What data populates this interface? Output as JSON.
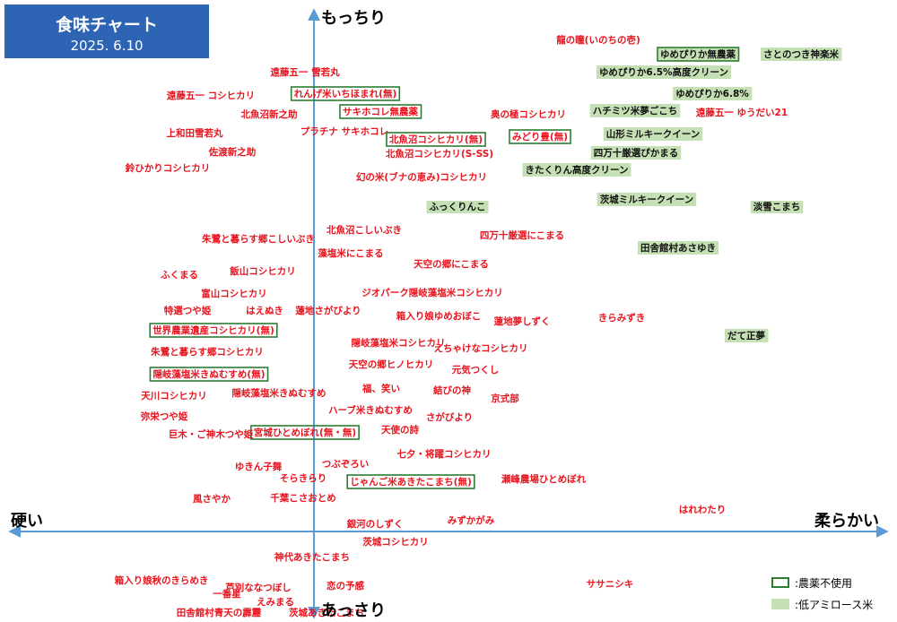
{
  "title": "食味チャート",
  "date": "2025. 6.10",
  "axes": {
    "top": "もっちり",
    "bottom": "あっさり",
    "left": "硬い",
    "right": "柔らかい"
  },
  "legend": {
    "organic": {
      "label": ":農薬不使用",
      "color": "#2e7d32"
    },
    "low_amylose": {
      "label": ":低アミロース米",
      "color": "#c5e0b4"
    }
  },
  "colors": {
    "red_text": "#e8141e",
    "black_text": "#111111",
    "axis": "#5b9bd5",
    "title_bg": "#2e64b4"
  },
  "chart_data": {
    "type": "scatter",
    "title": "食味チャート",
    "xlabel_left": "硬い",
    "xlabel_right": "柔らかい",
    "ylabel_top": "もっちり",
    "ylabel_bottom": "あっさり",
    "xlim": [
      -350,
      650
    ],
    "ylim": [
      -110,
      590
    ],
    "grid": false,
    "points": [
      {
        "label": "龍の瞳(いのちの壱)",
        "x": 317,
        "y": 548,
        "style": "red"
      },
      {
        "label": "ゆめぴりか無農薬",
        "x": 428,
        "y": 532,
        "style": "organic_green"
      },
      {
        "label": "さとのつき神楽米",
        "x": 543,
        "y": 532,
        "style": "green"
      },
      {
        "label": "遠藤五一 雪若丸",
        "x": -10,
        "y": 512,
        "style": "red"
      },
      {
        "label": "ゆめぴりか6.5%高度クリーン",
        "x": 390,
        "y": 512,
        "style": "green"
      },
      {
        "label": "ゆめぴりか6.8%",
        "x": 444,
        "y": 488,
        "style": "green"
      },
      {
        "label": "遠藤五一 コシヒカリ",
        "x": -115,
        "y": 486,
        "style": "red"
      },
      {
        "label": "れんげ米いちほまれ(無)",
        "x": 35,
        "y": 488,
        "style": "organic"
      },
      {
        "label": "サキホコレ無農薬",
        "x": 74,
        "y": 468,
        "style": "organic"
      },
      {
        "label": "北魚沼新之助",
        "x": -50,
        "y": 465,
        "style": "red"
      },
      {
        "label": "奥の極コシヒカリ",
        "x": 239,
        "y": 465,
        "style": "red"
      },
      {
        "label": "ハチミツ米夢ごこち",
        "x": 358,
        "y": 469,
        "style": "green"
      },
      {
        "label": "遠藤五一 ゆうだい21",
        "x": 477,
        "y": 467,
        "style": "red"
      },
      {
        "label": "上和田雪若丸",
        "x": -133,
        "y": 444,
        "style": "red"
      },
      {
        "label": "プラチナ サキホコレ",
        "x": 34,
        "y": 446,
        "style": "red"
      },
      {
        "label": "北魚沼コシヒカリ(無)",
        "x": 136,
        "y": 437,
        "style": "organic"
      },
      {
        "label": "みどり豊(無)",
        "x": 252,
        "y": 440,
        "style": "organic"
      },
      {
        "label": "山形ミルキークイーン",
        "x": 378,
        "y": 443,
        "style": "green"
      },
      {
        "label": "佐渡新之助",
        "x": -91,
        "y": 423,
        "style": "red"
      },
      {
        "label": "北魚沼コシヒカリ(S-SS)",
        "x": 140,
        "y": 421,
        "style": "red"
      },
      {
        "label": "四万十厳選ぴかまる",
        "x": 359,
        "y": 422,
        "style": "green"
      },
      {
        "label": "鈴ひかりコシヒカリ",
        "x": -163,
        "y": 405,
        "style": "red"
      },
      {
        "label": "きたくりん高度クリーン",
        "x": 293,
        "y": 403,
        "style": "green"
      },
      {
        "label": "幻の米(ブナの恵み)コシヒカリ",
        "x": 120,
        "y": 395,
        "style": "red"
      },
      {
        "label": "ふっくりんこ",
        "x": 160,
        "y": 362,
        "style": "green"
      },
      {
        "label": "茨城ミルキークイーン",
        "x": 371,
        "y": 370,
        "style": "green"
      },
      {
        "label": "淡雪こまち",
        "x": 516,
        "y": 362,
        "style": "green"
      },
      {
        "label": "北魚沼こしいぶき",
        "x": 56,
        "y": 336,
        "style": "red"
      },
      {
        "label": "四万十厳選にこまる",
        "x": 232,
        "y": 330,
        "style": "red"
      },
      {
        "label": "朱鷺と暮らす郷こしいぶき",
        "x": -62,
        "y": 326,
        "style": "red"
      },
      {
        "label": "田舎館村あさゆき",
        "x": 406,
        "y": 316,
        "style": "green"
      },
      {
        "label": "藻塩米にこまる",
        "x": 41,
        "y": 310,
        "style": "red"
      },
      {
        "label": "天空の郷にこまる",
        "x": 153,
        "y": 298,
        "style": "red"
      },
      {
        "label": "ふくまる",
        "x": -150,
        "y": 286,
        "style": "red"
      },
      {
        "label": "飯山コシヒカリ",
        "x": -57,
        "y": 290,
        "style": "red"
      },
      {
        "label": "富山コシヒカリ",
        "x": -89,
        "y": 265,
        "style": "red"
      },
      {
        "label": "ジオパーク隠岐藻塩米コシヒカリ",
        "x": 132,
        "y": 266,
        "style": "red"
      },
      {
        "label": "特選つや姫",
        "x": -141,
        "y": 246,
        "style": "red"
      },
      {
        "label": "はえぬき",
        "x": -55,
        "y": 246,
        "style": "red"
      },
      {
        "label": "蓮地さがびより",
        "x": 16,
        "y": 246,
        "style": "red"
      },
      {
        "label": "箱入り娘ゆめおぼこ",
        "x": 139,
        "y": 240,
        "style": "red"
      },
      {
        "label": "蓮地夢しずく",
        "x": 232,
        "y": 234,
        "style": "red"
      },
      {
        "label": "きらみずき",
        "x": 343,
        "y": 238,
        "style": "red"
      },
      {
        "label": "世界農業遺産コシヒカリ(無)",
        "x": -112,
        "y": 224,
        "style": "organic"
      },
      {
        "label": "だて正夢",
        "x": 482,
        "y": 218,
        "style": "green"
      },
      {
        "label": "隠岐藻塩米コシヒカリ",
        "x": 94,
        "y": 210,
        "style": "red"
      },
      {
        "label": "えちゃけなコシヒカリ",
        "x": 186,
        "y": 204,
        "style": "red"
      },
      {
        "label": "朱鷺と暮らす郷コシヒカリ",
        "x": -119,
        "y": 200,
        "style": "red"
      },
      {
        "label": "天空の郷ヒノヒカリ",
        "x": 86,
        "y": 186,
        "style": "red"
      },
      {
        "label": "元気つくし",
        "x": 180,
        "y": 180,
        "style": "red"
      },
      {
        "label": "隠岐藻塩米きぬむすめ(無)",
        "x": -117,
        "y": 175,
        "style": "organic"
      },
      {
        "label": "福、笑い",
        "x": 75,
        "y": 159,
        "style": "red"
      },
      {
        "label": "結びの神",
        "x": 154,
        "y": 157,
        "style": "red"
      },
      {
        "label": "天川コシヒカリ",
        "x": -156,
        "y": 151,
        "style": "red"
      },
      {
        "label": "隠岐藻塩米きぬむすめ",
        "x": -39,
        "y": 154,
        "style": "red"
      },
      {
        "label": "京式部",
        "x": 213,
        "y": 148,
        "style": "red"
      },
      {
        "label": "ハーブ米きぬむすめ",
        "x": 63,
        "y": 135,
        "style": "red"
      },
      {
        "label": "弥栄つや姫",
        "x": -167,
        "y": 128,
        "style": "red"
      },
      {
        "label": "さがびより",
        "x": 151,
        "y": 127,
        "style": "red"
      },
      {
        "label": "宮城ひとめぼれ(無・無)",
        "x": -10,
        "y": 110,
        "style": "organic"
      },
      {
        "label": "天使の詩",
        "x": 96,
        "y": 113,
        "style": "red"
      },
      {
        "label": "巨木・ご神木つや姫",
        "x": -115,
        "y": 108,
        "style": "red"
      },
      {
        "label": "七夕・将躍コシヒカリ",
        "x": 145,
        "y": 86,
        "style": "red"
      },
      {
        "label": "つぶぞろい",
        "x": 35,
        "y": 75,
        "style": "red"
      },
      {
        "label": "ゆきん子舞",
        "x": -62,
        "y": 72,
        "style": "red"
      },
      {
        "label": "そらきらり",
        "x": -12,
        "y": 59,
        "style": "red"
      },
      {
        "label": "じゃんご米あきたこまち(無)",
        "x": 108,
        "y": 55,
        "style": "organic"
      },
      {
        "label": "瀬峰農場ひとめぼれ",
        "x": 256,
        "y": 58,
        "style": "red"
      },
      {
        "label": "風さやか",
        "x": -114,
        "y": 36,
        "style": "red"
      },
      {
        "label": "千葉こさおとめ",
        "x": -12,
        "y": 37,
        "style": "red"
      },
      {
        "label": "はれわたり",
        "x": 433,
        "y": 24,
        "style": "red"
      },
      {
        "label": "銀河のしずく",
        "x": 68,
        "y": 8,
        "style": "red"
      },
      {
        "label": "みずかがみ",
        "x": 175,
        "y": 12,
        "style": "red"
      },
      {
        "label": "茨城コシヒカリ",
        "x": 91,
        "y": -12,
        "style": "red"
      },
      {
        "label": "神代あきたこまち",
        "x": -2,
        "y": -29,
        "style": "red"
      },
      {
        "label": "箱入り娘秋のきらめき",
        "x": -170,
        "y": -55,
        "style": "red"
      },
      {
        "label": "芦別ななつぼし",
        "x": -62,
        "y": -63,
        "style": "red"
      },
      {
        "label": "恋の予感",
        "x": 35,
        "y": -61,
        "style": "red"
      },
      {
        "label": "ササニシキ",
        "x": 330,
        "y": -59,
        "style": "red"
      },
      {
        "label": "一番星",
        "x": -97,
        "y": -70,
        "style": "red"
      },
      {
        "label": "えみまる",
        "x": -43,
        "y": -79,
        "style": "red"
      },
      {
        "label": "田舎館村青天の霹靂",
        "x": -106,
        "y": -100,
        "style": "red"
      },
      {
        "label": "茨城あきたこまち",
        "x": 14,
        "y": -100,
        "style": "red"
      }
    ]
  }
}
